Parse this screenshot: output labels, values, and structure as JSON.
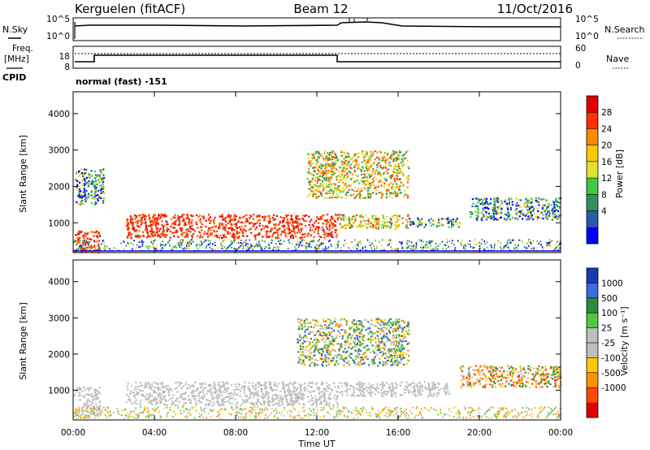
{
  "header": {
    "title_left": "Kerguelen (fitACF)",
    "title_center": "Beam 12",
    "title_right": "11/Oct/2016"
  },
  "noise_panel": {
    "left_label": "N.Sky",
    "right_label": "N.Search",
    "left_ticks": [
      "10^5",
      "10^0"
    ],
    "right_ticks": [
      "10^5",
      "10^0"
    ]
  },
  "freq_panel": {
    "left_label_1": "Freq.",
    "left_label_2": "[MHz]",
    "cpid_label": "CPID",
    "right_label": "Nave",
    "left_ticks": [
      "18",
      "8"
    ],
    "right_ticks": [
      "60",
      "0"
    ],
    "program_text": "normal (fast) -151"
  },
  "chart_data": [
    {
      "type": "heatmap",
      "name": "power",
      "xlabel": "",
      "ylabel": "Slant Range [km]",
      "x_ticks": [
        "00:00",
        "04:00",
        "08:00",
        "12:00",
        "16:00",
        "20:00",
        "00:00"
      ],
      "xlim_hours": [
        0,
        24
      ],
      "y_ticks": [
        "1000",
        "2000",
        "3000",
        "4000"
      ],
      "ylim_km": [
        180,
        4600
      ],
      "colorbar": {
        "label": "Power [dB]",
        "ticks": [
          "28",
          "24",
          "20",
          "16",
          "12",
          "8",
          "4"
        ],
        "colors": [
          "#e00000",
          "#ff3000",
          "#ff8800",
          "#ffc800",
          "#dfe030",
          "#40c840",
          "#309060",
          "#2a5aa8",
          "#0000ff"
        ]
      },
      "regions": [
        {
          "t0": 2.6,
          "t1": 13.0,
          "r0": 600,
          "r1": 1250,
          "level": "high"
        },
        {
          "t0": 13.0,
          "t1": 16.5,
          "r0": 850,
          "r1": 1250,
          "level": "mid"
        },
        {
          "t0": 16.5,
          "t1": 19.0,
          "r0": 900,
          "r1": 1150,
          "level": "low"
        },
        {
          "t0": 11.5,
          "t1": 16.5,
          "r0": 1700,
          "r1": 3000,
          "level": "mid"
        },
        {
          "t0": 19.5,
          "t1": 24.0,
          "r0": 1100,
          "r1": 1700,
          "level": "low"
        },
        {
          "t0": 0.0,
          "t1": 1.3,
          "r0": 200,
          "r1": 800,
          "level": "high"
        },
        {
          "t0": 0.1,
          "t1": 1.5,
          "r0": 1500,
          "r1": 2500,
          "level": "low"
        }
      ]
    },
    {
      "type": "heatmap",
      "name": "velocity",
      "xlabel": "Time UT",
      "ylabel": "Slant Range [km]",
      "x_ticks": [
        "00:00",
        "04:00",
        "08:00",
        "12:00",
        "16:00",
        "20:00",
        "00:00"
      ],
      "xlim_hours": [
        0,
        24
      ],
      "y_ticks": [
        "1000",
        "2000",
        "3000",
        "4000"
      ],
      "ylim_km": [
        180,
        4600
      ],
      "colorbar": {
        "label": "Velocity [m s⁻¹]",
        "ticks": [
          "1000",
          "500",
          "100",
          "25",
          "-25",
          "-100",
          "-500",
          "-1000"
        ],
        "colors": [
          "#1a3ab0",
          "#3a6ae0",
          "#2a8a40",
          "#50c840",
          "#bebebe",
          "#bebebe",
          "#ffc800",
          "#ff9000",
          "#ff4800",
          "#e00000"
        ]
      },
      "regions": [
        {
          "t0": 2.6,
          "t1": 13.0,
          "r0": 600,
          "r1": 1250,
          "level": "ground"
        },
        {
          "t0": 13.0,
          "t1": 18.5,
          "r0": 850,
          "r1": 1250,
          "level": "ground"
        },
        {
          "t0": 0.0,
          "t1": 1.3,
          "r0": 300,
          "r1": 1100,
          "level": "ground"
        },
        {
          "t0": 11.0,
          "t1": 16.5,
          "r0": 1700,
          "r1": 3000,
          "level": "mixed"
        },
        {
          "t0": 19.0,
          "t1": 24.0,
          "r0": 1100,
          "r1": 1700,
          "level": "negative"
        }
      ]
    }
  ]
}
